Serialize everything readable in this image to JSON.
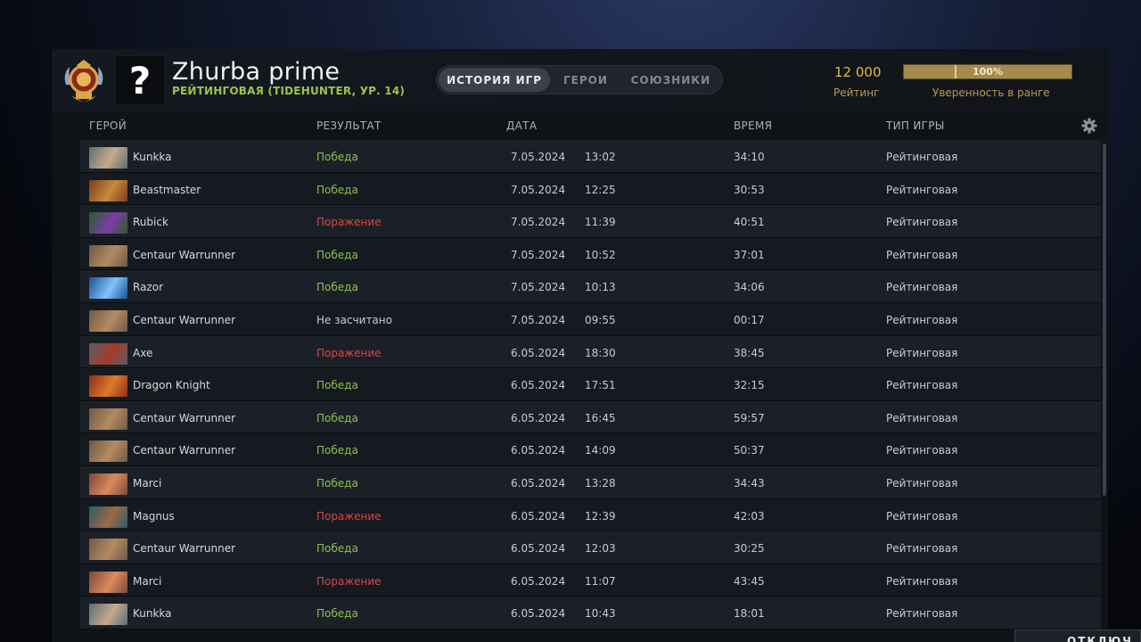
{
  "header": {
    "player_name": "Zhurba prime",
    "player_sub": "РЕЙТИНГОВАЯ (TIDEHUNTER, УР. 14)",
    "avatar_glyph": "?",
    "tabs": [
      {
        "label": "ИСТОРИЯ ИГР",
        "active": true
      },
      {
        "label": "ГЕРОИ",
        "active": false
      },
      {
        "label": "СОЮЗНИКИ",
        "active": false
      }
    ],
    "rating_value": "12 000",
    "rating_label": "Рейтинг",
    "confidence_value": "100%",
    "confidence_fraction": 1.0,
    "confidence_label": "Уверенность в ранге"
  },
  "columns": {
    "hero": "ГЕРОЙ",
    "result": "РЕЗУЛЬТАТ",
    "date": "ДАТА",
    "duration": "ВРЕМЯ",
    "game_type": "ТИП ИГРЫ"
  },
  "matches": [
    {
      "hero": "Kunkka",
      "result": "Победа",
      "outcome": "win",
      "date": "7.05.2024",
      "time": "13:02",
      "duration": "34:10",
      "type": "Рейтинговая",
      "thumb": [
        "#5b6d76",
        "#c7a98a"
      ]
    },
    {
      "hero": "Beastmaster",
      "result": "Победа",
      "outcome": "win",
      "date": "7.05.2024",
      "time": "12:25",
      "duration": "30:53",
      "type": "Рейтинговая",
      "thumb": [
        "#7a3b22",
        "#c78a3c"
      ]
    },
    {
      "hero": "Rubick",
      "result": "Поражение",
      "outcome": "loss",
      "date": "7.05.2024",
      "time": "11:39",
      "duration": "40:51",
      "type": "Рейтинговая",
      "thumb": [
        "#2f5a2a",
        "#7a3fa6"
      ]
    },
    {
      "hero": "Centaur Warrunner",
      "result": "Победа",
      "outcome": "win",
      "date": "7.05.2024",
      "time": "10:52",
      "duration": "37:01",
      "type": "Рейтинговая",
      "thumb": [
        "#6e5a45",
        "#b48a62"
      ]
    },
    {
      "hero": "Razor",
      "result": "Победа",
      "outcome": "win",
      "date": "7.05.2024",
      "time": "10:13",
      "duration": "34:06",
      "type": "Рейтинговая",
      "thumb": [
        "#1f4f8f",
        "#7fc4ff"
      ]
    },
    {
      "hero": "Centaur Warrunner",
      "result": "Не засчитано",
      "outcome": "none",
      "date": "7.05.2024",
      "time": "09:55",
      "duration": "00:17",
      "type": "Рейтинговая",
      "thumb": [
        "#6e5a45",
        "#b48a62"
      ]
    },
    {
      "hero": "Axe",
      "result": "Поражение",
      "outcome": "loss",
      "date": "6.05.2024",
      "time": "18:30",
      "duration": "38:45",
      "type": "Рейтинговая",
      "thumb": [
        "#5a5e66",
        "#a33b2c"
      ]
    },
    {
      "hero": "Dragon Knight",
      "result": "Победа",
      "outcome": "win",
      "date": "6.05.2024",
      "time": "17:51",
      "duration": "32:15",
      "type": "Рейтинговая",
      "thumb": [
        "#8a2e1c",
        "#e07a2a"
      ]
    },
    {
      "hero": "Centaur Warrunner",
      "result": "Победа",
      "outcome": "win",
      "date": "6.05.2024",
      "time": "16:45",
      "duration": "59:57",
      "type": "Рейтинговая",
      "thumb": [
        "#6e5a45",
        "#b48a62"
      ]
    },
    {
      "hero": "Centaur Warrunner",
      "result": "Победа",
      "outcome": "win",
      "date": "6.05.2024",
      "time": "14:09",
      "duration": "50:37",
      "type": "Рейтинговая",
      "thumb": [
        "#6e5a45",
        "#b48a62"
      ]
    },
    {
      "hero": "Marci",
      "result": "Победа",
      "outcome": "win",
      "date": "6.05.2024",
      "time": "13:28",
      "duration": "34:43",
      "type": "Рейтинговая",
      "thumb": [
        "#7a4a3a",
        "#d98b5a"
      ]
    },
    {
      "hero": "Magnus",
      "result": "Поражение",
      "outcome": "loss",
      "date": "6.05.2024",
      "time": "12:39",
      "duration": "42:03",
      "type": "Рейтинговая",
      "thumb": [
        "#2d5a6a",
        "#9a6a4a"
      ]
    },
    {
      "hero": "Centaur Warrunner",
      "result": "Победа",
      "outcome": "win",
      "date": "6.05.2024",
      "time": "12:03",
      "duration": "30:25",
      "type": "Рейтинговая",
      "thumb": [
        "#6e5a45",
        "#b48a62"
      ]
    },
    {
      "hero": "Marci",
      "result": "Поражение",
      "outcome": "loss",
      "date": "6.05.2024",
      "time": "11:07",
      "duration": "43:45",
      "type": "Рейтинговая",
      "thumb": [
        "#7a4a3a",
        "#d98b5a"
      ]
    },
    {
      "hero": "Kunkka",
      "result": "Победа",
      "outcome": "win",
      "date": "6.05.2024",
      "time": "10:43",
      "duration": "18:01",
      "type": "Рейтинговая",
      "thumb": [
        "#5b6d76",
        "#c7a98a"
      ]
    }
  ],
  "footer": {
    "disconnect_label": "ОТКЛЮЧ"
  },
  "colors": {
    "win": "#8fc04a",
    "loss": "#e0453d",
    "gold": "#e2b64e"
  }
}
